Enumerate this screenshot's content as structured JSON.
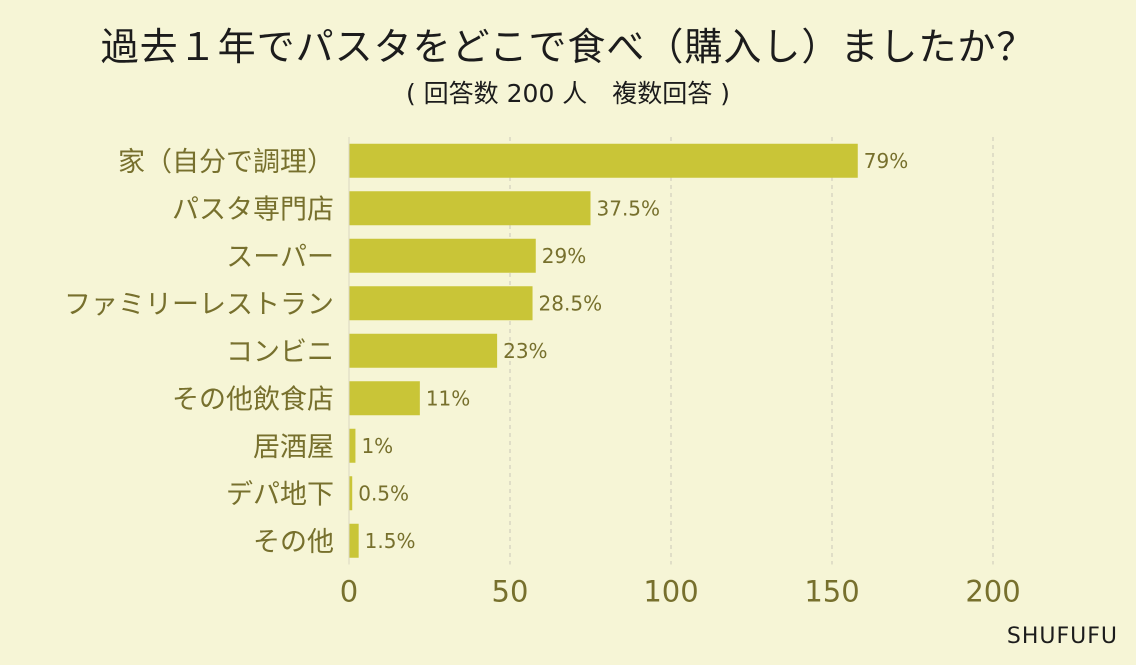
{
  "header": {
    "title": "過去１年でパスタをどこで食べ（購入し）ましたか？",
    "subtitle": "( 回答数 200 人　複数回答 )"
  },
  "footer": {
    "brand": "SHUFUFU"
  },
  "colors": {
    "background": "#f6f5d6",
    "bar": "#c9c537",
    "category_text": "#77702d",
    "value_text": "#77702d",
    "tick_text": "#77702d",
    "grid": "#d9d7c2"
  },
  "chart_data": {
    "type": "bar",
    "orientation": "horizontal",
    "categories": [
      "家（自分で調理）",
      "パスタ専門店",
      "スーパー",
      "ファミリーレストラン",
      "コンビニ",
      "その他飲食店",
      "居酒屋",
      "デパ地下",
      "その他"
    ],
    "values": [
      158,
      75,
      58,
      57,
      46,
      22,
      2,
      1,
      3
    ],
    "value_labels": [
      "79%",
      "37.5%",
      "29%",
      "28.5%",
      "23%",
      "11%",
      "1%",
      "0.5%",
      "1.5%"
    ],
    "xlim": [
      0,
      200
    ],
    "xticks": [
      "0",
      "50",
      "100",
      "150",
      "200"
    ],
    "grid": true
  }
}
